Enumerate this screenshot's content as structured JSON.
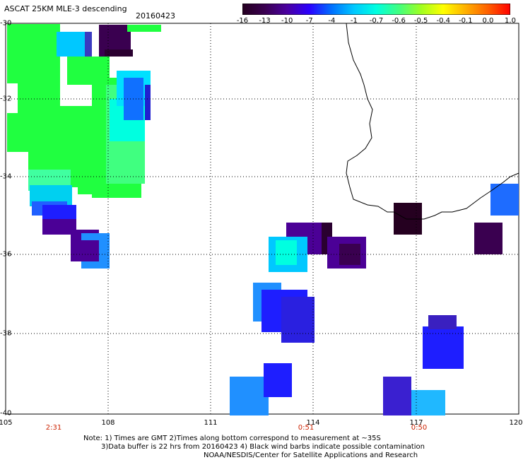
{
  "title": {
    "product": "ASCAT 25KM MLE-3 descending",
    "date": "20160423"
  },
  "colorbar": {
    "labels": [
      "-16",
      "-13",
      "-10",
      "-7",
      "-4",
      "-1",
      "-0.7",
      "-0.6",
      "-0.5",
      "-0.4",
      "-0.1",
      "0.0",
      "1.0"
    ],
    "colors": [
      "#250020",
      "#3a0050",
      "#4a00a0",
      "#2a00ff",
      "#0070ff",
      "#00c8ff",
      "#00ffe0",
      "#40ff80",
      "#a0ff20",
      "#ffff00",
      "#ffb000",
      "#ff6000",
      "#ff0000"
    ]
  },
  "axes": {
    "lat_labels": [
      "-30",
      "-32",
      "-34",
      "-36",
      "-38",
      "-40"
    ],
    "lon_labels": [
      "105",
      "108",
      "111",
      "114",
      "117",
      "120"
    ],
    "time_labels": [
      "2:31",
      "0:51",
      "0:50"
    ]
  },
  "legend_colors": {
    "dark_purple": "#2a0030",
    "purple": "#4b0096",
    "blue": "#1e1eff",
    "light_blue": "#2090ff",
    "cyan": "#00e0ff",
    "teal": "#00ffc0",
    "green": "#20ff40",
    "coast": "#000000",
    "grid": "#000000"
  },
  "notes": [
    "Note: 1) Times are GMT 2)Times along bottom correspond to measurement at ~35S",
    "3)Data buffer is 22 hrs from 20160423 4) Black wind barbs indicate possible contamination",
    "NOAA/NESDIS/Center for Satellite Applications and Research"
  ]
}
